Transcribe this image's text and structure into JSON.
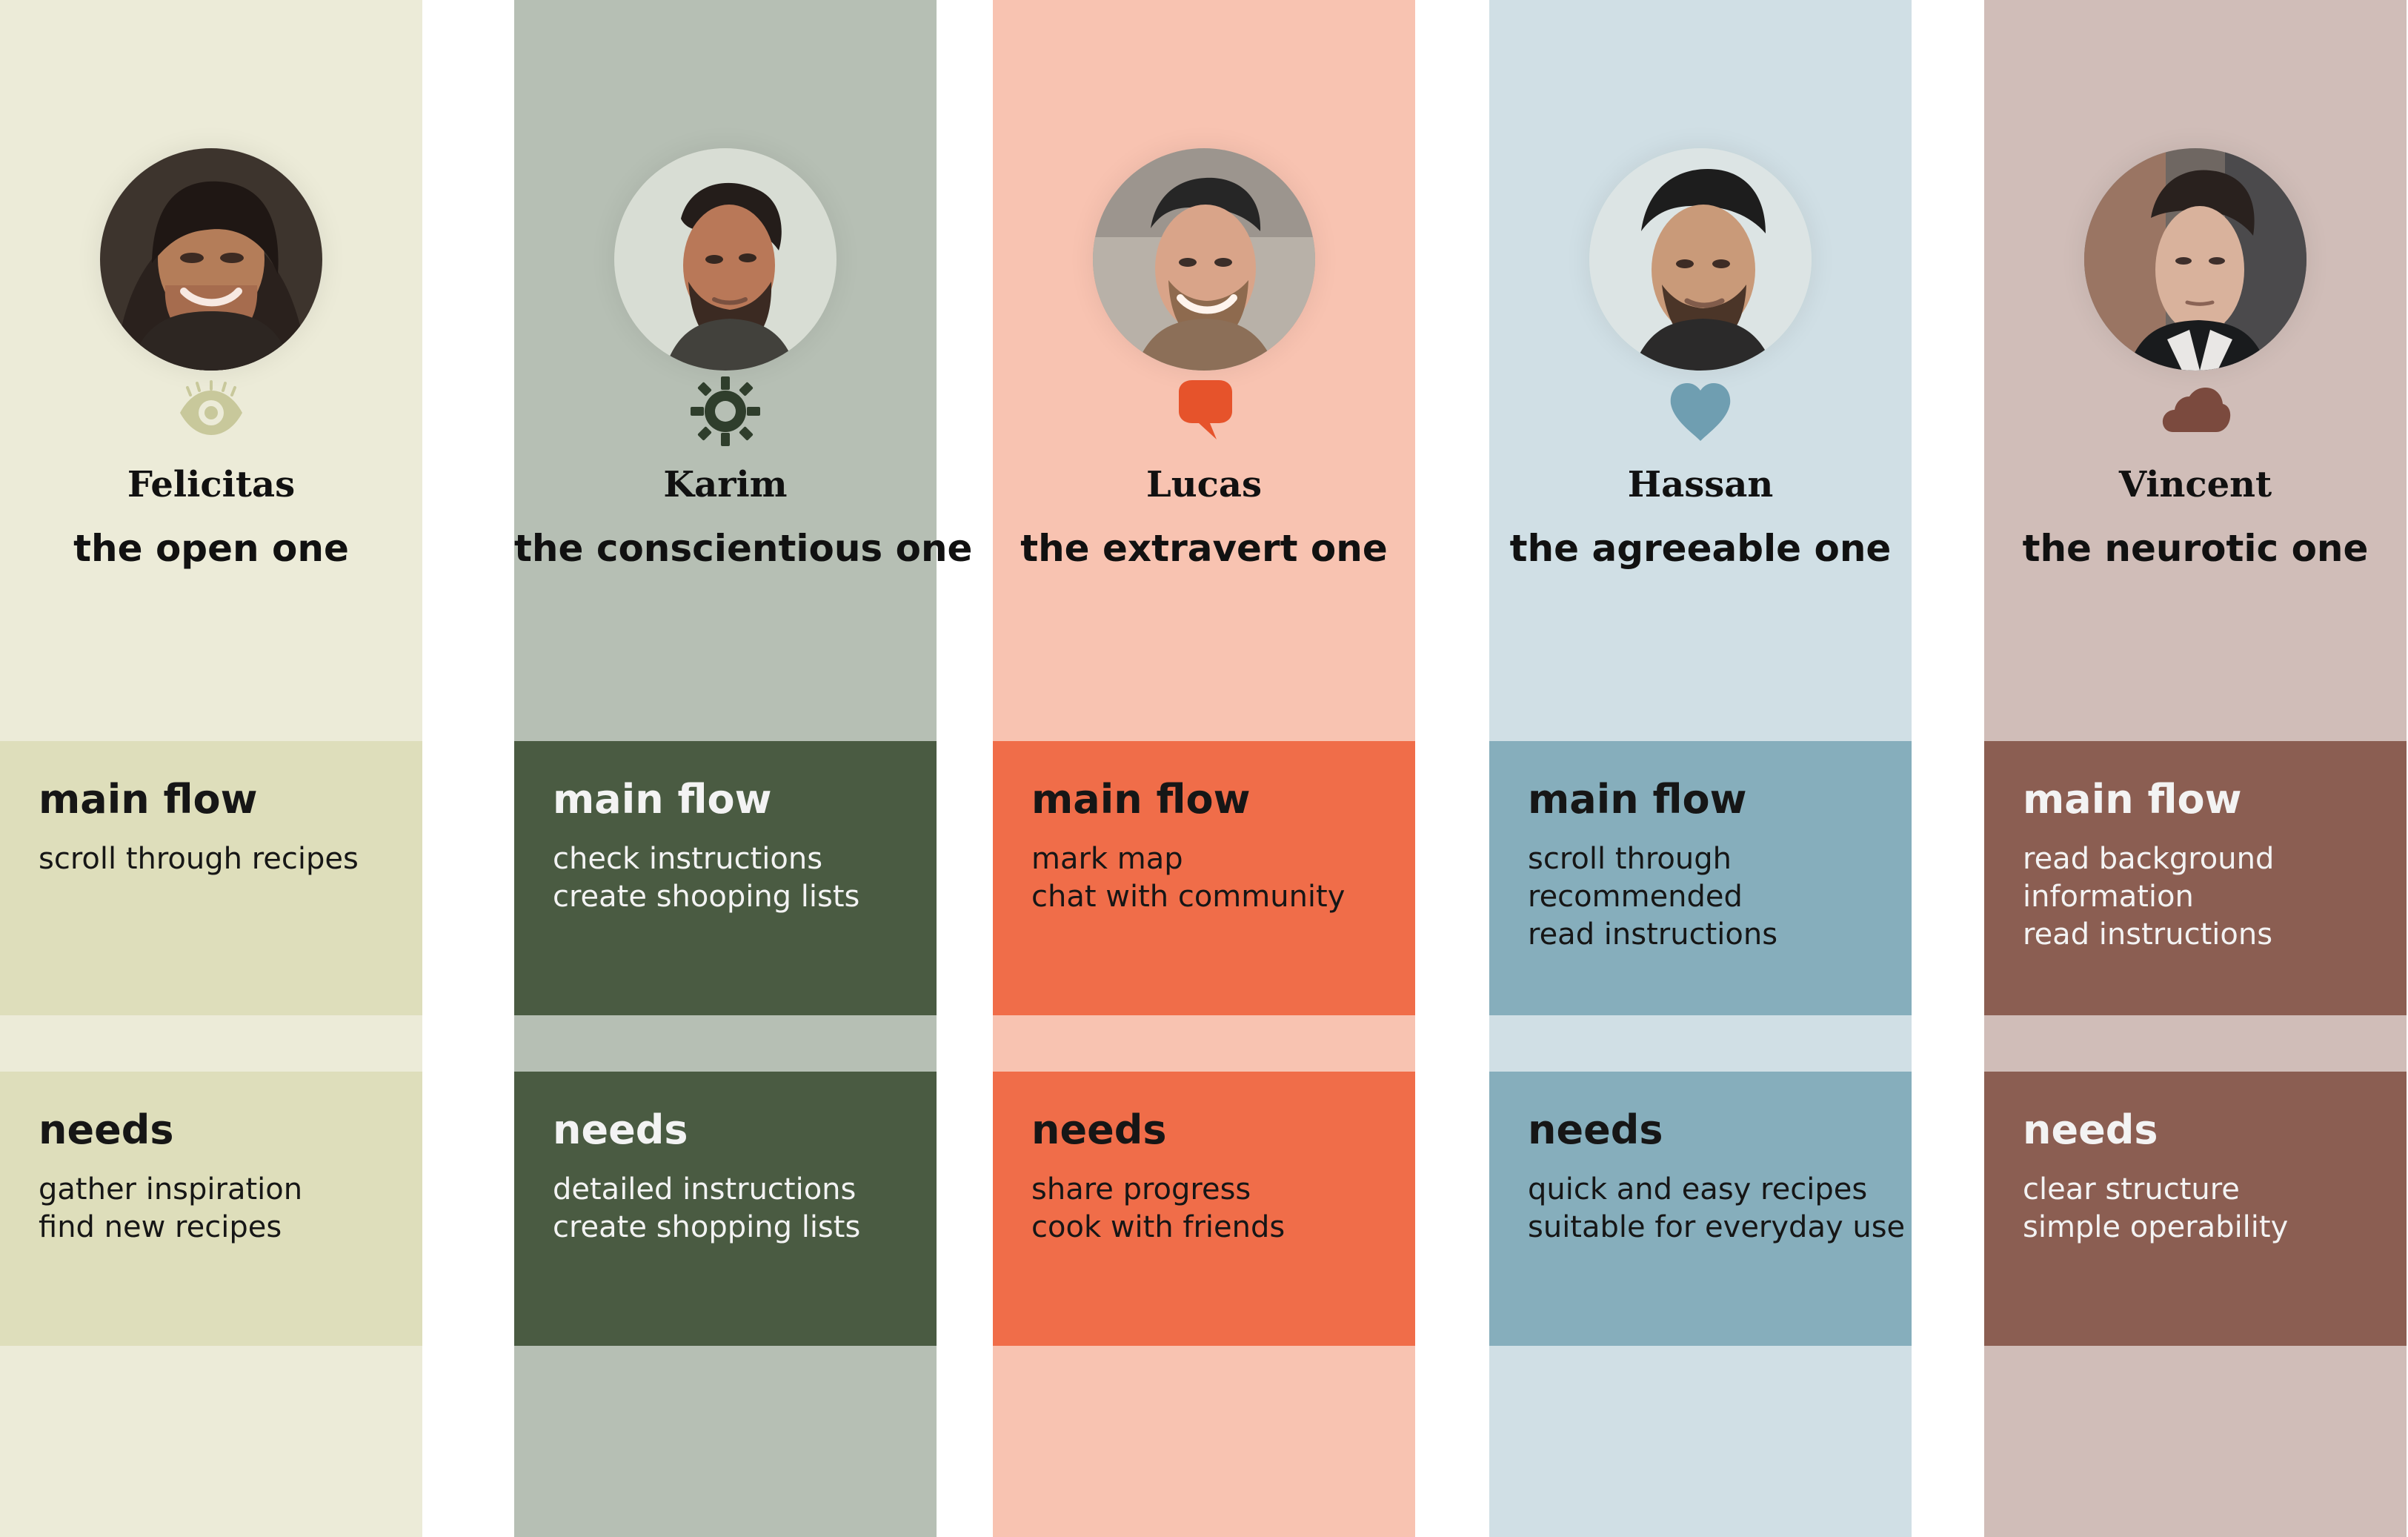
{
  "personas": [
    {
      "name": "Felicitas",
      "tagline": "the open one",
      "icon": "eye-icon",
      "main_flow": {
        "title": "main flow",
        "lines": [
          "scroll through recipes"
        ]
      },
      "needs": {
        "title": "needs",
        "lines": [
          "gather inspiration",
          "find new recipes"
        ]
      },
      "colors": {
        "column": "#ECEBD8",
        "box": "#DEDEBB",
        "icon": "#C8C89B"
      }
    },
    {
      "name": "Karim",
      "tagline": "the conscientious one",
      "icon": "gear-icon",
      "main_flow": {
        "title": "main flow",
        "lines": [
          "check instructions",
          "create shooping lists"
        ]
      },
      "needs": {
        "title": "needs",
        "lines": [
          "detailed instructions",
          "create shopping lists"
        ]
      },
      "colors": {
        "column": "#B6BFB4",
        "box": "#4A5B42",
        "icon": "#2F3E2C"
      }
    },
    {
      "name": "Lucas",
      "tagline": "the extravert one",
      "icon": "speech-bubble-icon",
      "main_flow": {
        "title": "main flow",
        "lines": [
          "mark map",
          "chat with community"
        ]
      },
      "needs": {
        "title": "needs",
        "lines": [
          "share progress",
          "cook with friends"
        ]
      },
      "colors": {
        "column": "#F8C3B1",
        "box": "#F06D49",
        "icon": "#E6532B"
      }
    },
    {
      "name": "Hassan",
      "tagline": "the agreeable one",
      "icon": "heart-icon",
      "main_flow": {
        "title": "main flow",
        "lines": [
          "scroll through",
          "recommended",
          "read instructions"
        ]
      },
      "needs": {
        "title": "needs",
        "lines": [
          "quick and easy recipes",
          "suitable for everyday use"
        ]
      },
      "colors": {
        "column": "#D0DFE5",
        "box": "#86AEBC",
        "icon": "#6F9EB1"
      }
    },
    {
      "name": "Vincent",
      "tagline": "the neurotic one",
      "icon": "cloud-icon",
      "main_flow": {
        "title": "main flow",
        "lines": [
          "read background",
          "information",
          "read instructions"
        ]
      },
      "needs": {
        "title": "needs",
        "lines": [
          "clear structure",
          "simple operability"
        ]
      },
      "colors": {
        "column": "#D0BDB8",
        "box": "#8B5E52",
        "icon": "#7B4A3E"
      }
    }
  ]
}
